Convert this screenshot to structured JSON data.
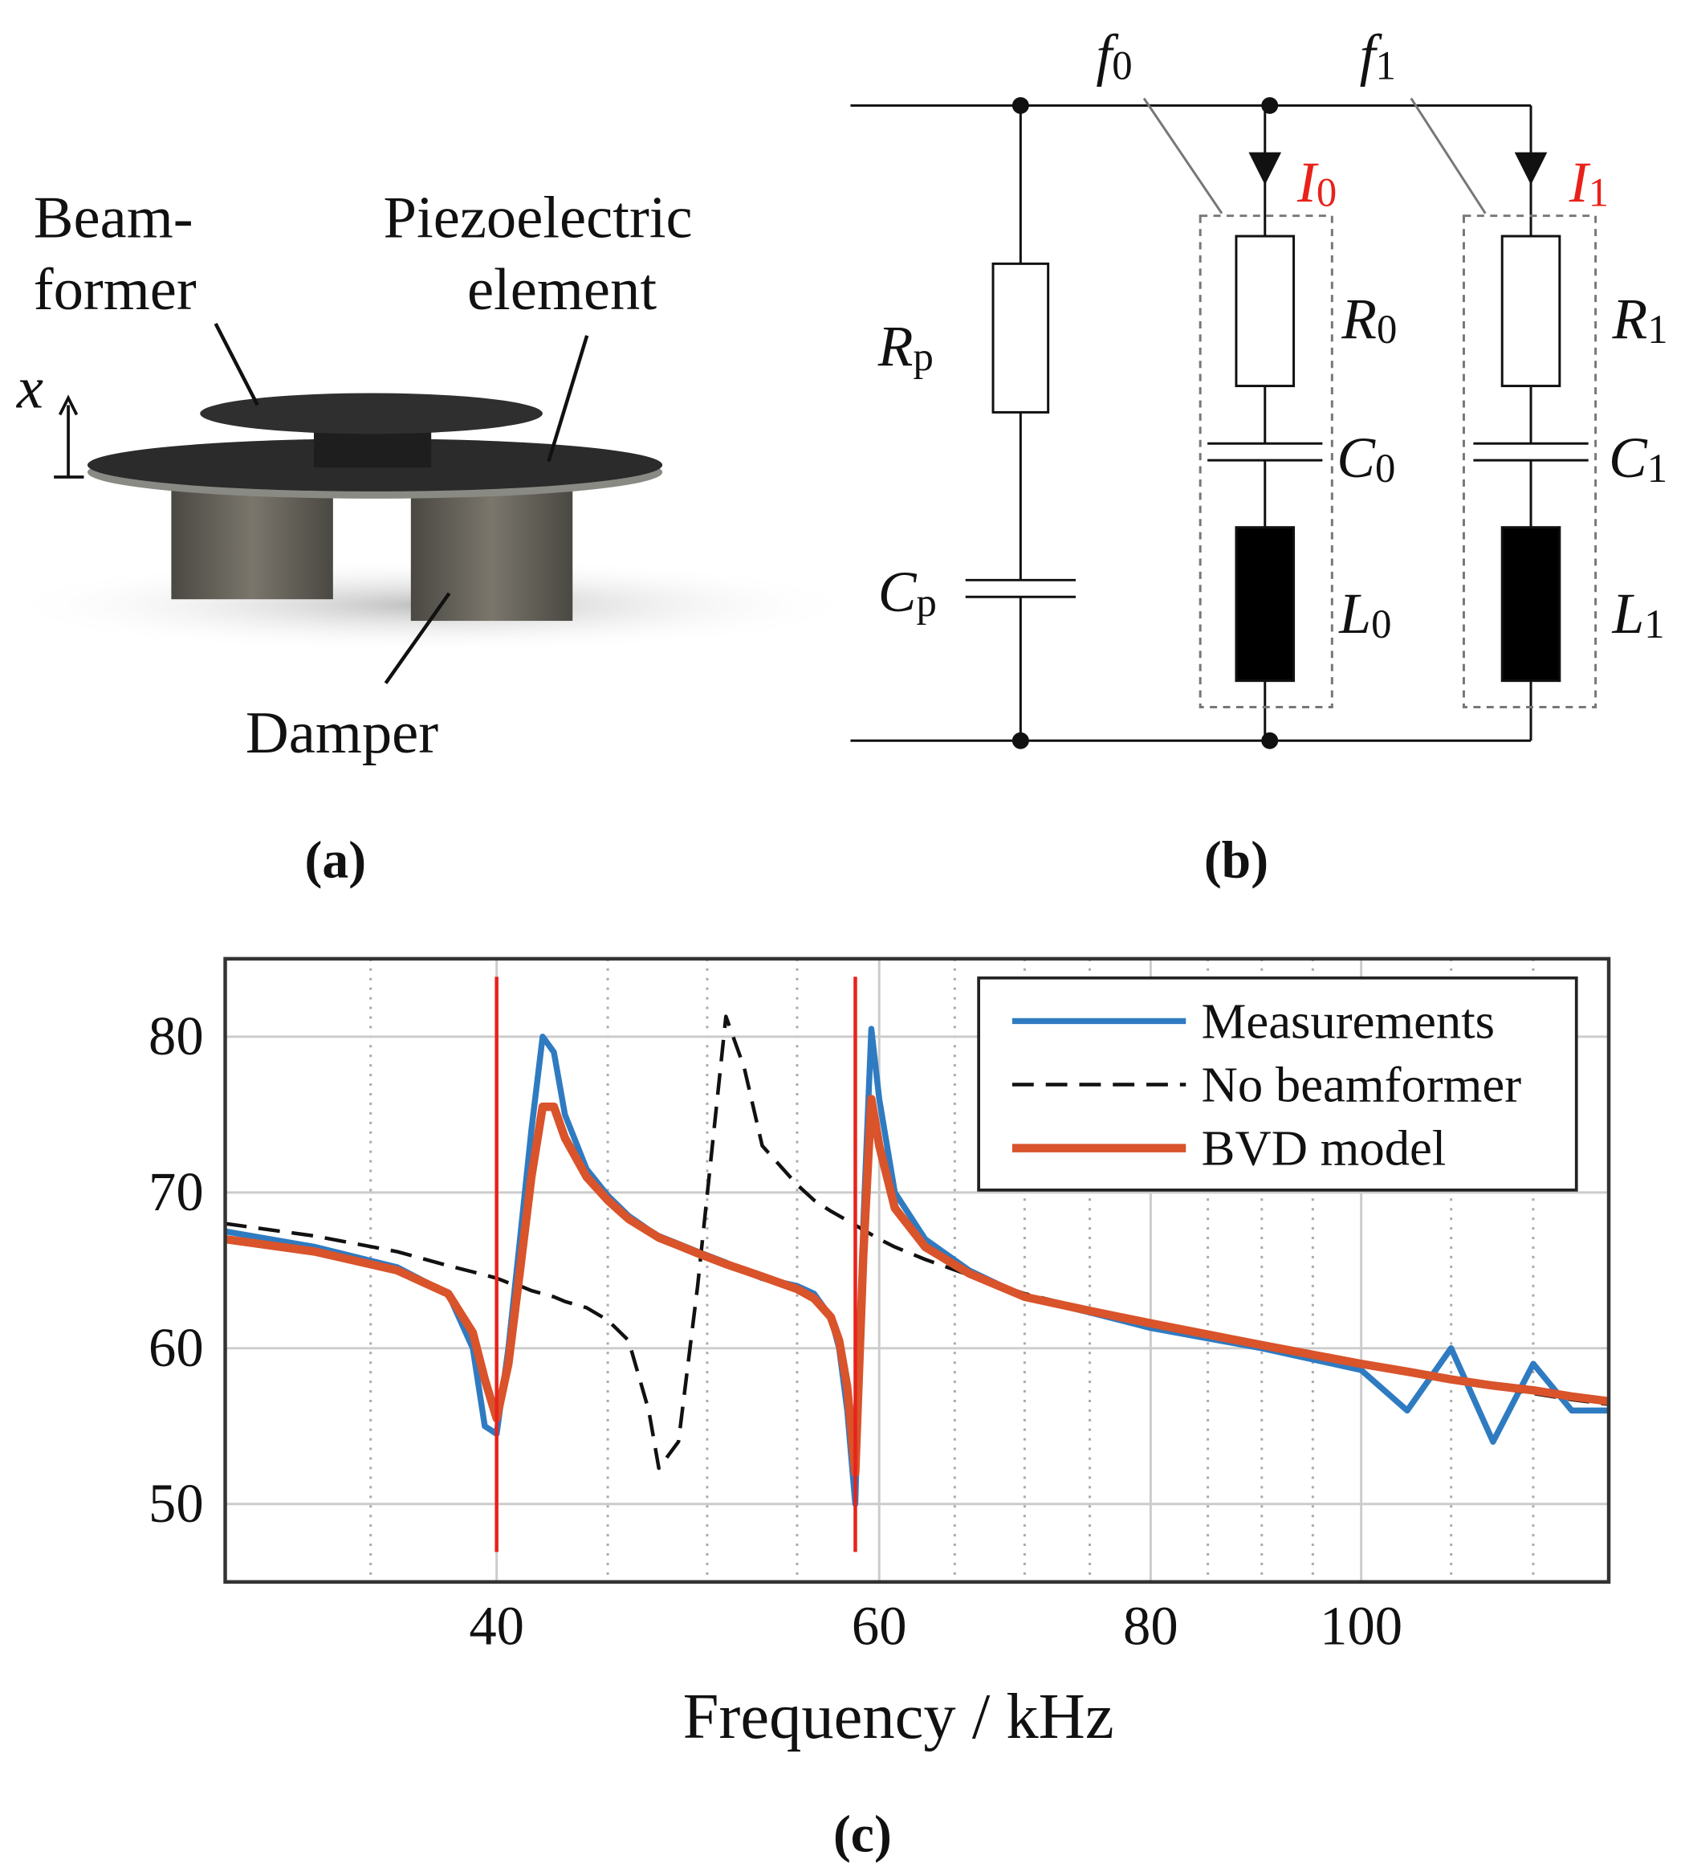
{
  "panel_a": {
    "labels": [
      "Beam-",
      "former",
      "Piezoelectric",
      "element",
      "Damper",
      "x"
    ],
    "caption": "(a)"
  },
  "panel_b": {
    "labels": [
      {
        "main": "f",
        "sub": "0"
      },
      {
        "main": "f",
        "sub": "1"
      },
      {
        "main": "I",
        "sub": "0"
      },
      {
        "main": "I",
        "sub": "1"
      },
      {
        "main": "R",
        "sub": "p"
      },
      {
        "main": "C",
        "sub": "p"
      },
      {
        "main": "R",
        "sub": "0"
      },
      {
        "main": "C",
        "sub": "0"
      },
      {
        "main": "L",
        "sub": "0"
      },
      {
        "main": "R",
        "sub": "1"
      },
      {
        "main": "C",
        "sub": "1"
      },
      {
        "main": "L",
        "sub": "1"
      }
    ],
    "current_color": "#e8221b",
    "caption": "(b)"
  },
  "chart_data": {
    "type": "line",
    "xlabel": "Frequency / kHz",
    "xscale": "log",
    "xlim": [
      30,
      130
    ],
    "ylim": [
      45,
      85
    ],
    "xticks": [
      40,
      60,
      80,
      100
    ],
    "xminorticks": [
      35,
      45,
      50,
      55,
      65,
      70,
      75,
      85,
      90,
      95,
      110,
      120
    ],
    "yticks": [
      50,
      60,
      70,
      80
    ],
    "grid": true,
    "legend": "upper right",
    "vlines": [
      40,
      58.5
    ],
    "vline_color": "#e8221b",
    "x": [
      30,
      33,
      36,
      38,
      39,
      39.5,
      40,
      40.5,
      41,
      41.5,
      42,
      42.5,
      43,
      44,
      45,
      46,
      47,
      47.5,
      48.5,
      49.5,
      51,
      52,
      53,
      55,
      56,
      57,
      57.5,
      58,
      58.5,
      59,
      59.5,
      60,
      61,
      63,
      66,
      70,
      75,
      80,
      90,
      100,
      105,
      110,
      115,
      120,
      125,
      130
    ],
    "series": [
      {
        "name": "Measurements",
        "color": "#2f7bc1",
        "style": "solid",
        "values": [
          67.5,
          66.5,
          65.2,
          63.5,
          60,
          55,
          54.5,
          60,
          67,
          74,
          80,
          79,
          75,
          71.5,
          69.8,
          68.5,
          67.6,
          67.2,
          66.7,
          66.2,
          65.5,
          65,
          64.5,
          64,
          63.5,
          62,
          60,
          56,
          50,
          68,
          80.5,
          76,
          70,
          67,
          65,
          63.3,
          62.3,
          61.3,
          60,
          58.6,
          56,
          60,
          54,
          59,
          56,
          56
        ]
      },
      {
        "name": "No beamformer",
        "color": "#111111",
        "style": "dashed",
        "values": [
          68,
          67.2,
          66.2,
          65.3,
          64.9,
          64.7,
          64.5,
          64.2,
          64,
          63.7,
          63.5,
          63.3,
          63,
          62.6,
          61.8,
          60.5,
          56,
          52.3,
          54,
          64,
          81.3,
          78,
          73,
          70.5,
          69.5,
          68.8,
          68.5,
          68.2,
          67.9,
          67.6,
          67.3,
          67,
          66.5,
          65.7,
          64.7,
          63.5,
          62.5,
          61.7,
          60.3,
          59,
          58.5,
          58,
          57.5,
          57.1,
          56.7,
          56.4
        ]
      },
      {
        "name": "BVD model",
        "color": "#d9532b",
        "style": "solid",
        "values": [
          67,
          66.2,
          65,
          63.5,
          61,
          58,
          55.5,
          59,
          65,
          71,
          75.5,
          75.5,
          73.5,
          71,
          69.5,
          68.3,
          67.5,
          67.1,
          66.6,
          66.1,
          65.4,
          65,
          64.6,
          63.8,
          63.2,
          62,
          60.5,
          57.5,
          52,
          66,
          76,
          73,
          69,
          66.5,
          64.8,
          63.3,
          62.4,
          61.6,
          60.2,
          59,
          58.5,
          58,
          57.6,
          57.3,
          56.9,
          56.6
        ]
      }
    ],
    "caption": "(c)"
  }
}
